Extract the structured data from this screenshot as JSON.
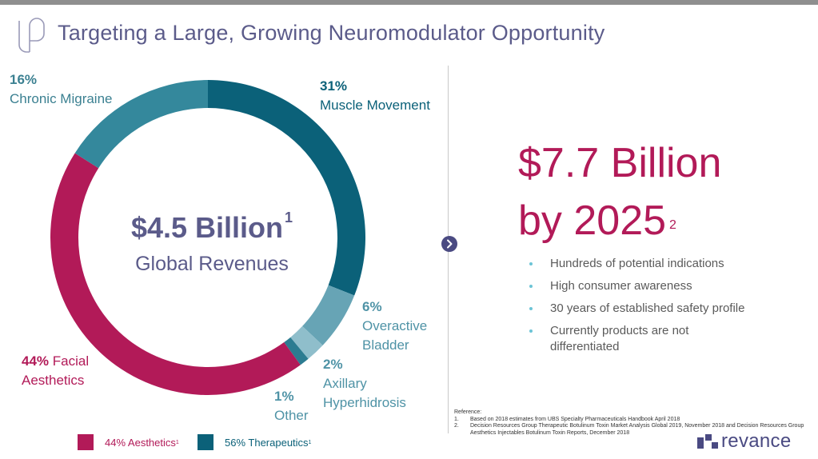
{
  "page": {
    "title": "Targeting a Large, Growing Neuromodulator Opportunity"
  },
  "colors": {
    "muscle_movement": "#0b6179",
    "overactive_bladder": "#67a4b5",
    "axillary_hyperhidrosis": "#8fbecb",
    "other": "#2c7c91",
    "facial_aesthetics": "#b21a58",
    "chronic_migraine": "#34889c",
    "title": "#5b5b8a",
    "accent": "#b21a58",
    "bullet_dot": "#6cc4d6"
  },
  "chart_data": {
    "type": "pie",
    "donut": true,
    "start": "top, clockwise",
    "center_value": "$4.5 Billion",
    "center_value_sup": "1",
    "center_label": "Global Revenues",
    "slices": [
      {
        "key": "muscle_movement",
        "value": 31,
        "pct_label": "31%",
        "label": "Muscle Movement"
      },
      {
        "key": "overactive_bladder",
        "value": 6,
        "pct_label": "6%",
        "label_line1": "Overactive",
        "label_line2": "Bladder"
      },
      {
        "key": "axillary_hyperhidrosis",
        "value": 2,
        "pct_label": "2%",
        "label_line1": "Axillary",
        "label_line2": "Hyperhidrosis"
      },
      {
        "key": "other",
        "value": 1,
        "pct_label": "1%",
        "label": "Other"
      },
      {
        "key": "facial_aesthetics",
        "value": 44,
        "pct_label": "44%",
        "label_inline": "Facial",
        "label_line2": "Aesthetics"
      },
      {
        "key": "chronic_migraine",
        "value": 16,
        "pct_label": "16%",
        "label": "Chronic Migraine"
      }
    ],
    "legend": [
      {
        "key": "aesthetics",
        "text": "44% Aesthetics",
        "sup": "1",
        "color": "#b21a58"
      },
      {
        "key": "therapeutics",
        "text": "56% Therapeutics",
        "sup": "1",
        "color": "#0b6179"
      }
    ]
  },
  "forecast": {
    "line1": "$7.7 Billion",
    "line2": "by 2025",
    "sup": "2"
  },
  "bullets": [
    "Hundreds of potential indications",
    "High consumer awareness",
    "30 years of established safety profile",
    "Currently products are not differentiated"
  ],
  "references": {
    "heading": "Reference:",
    "items": [
      {
        "num": "1.",
        "text": "Based on 2018 estimates from UBS Specialty Pharmaceuticals Handbook April 2018"
      },
      {
        "num": "2.",
        "text": "Decision Resources Group Therapeutic Botulinum Toxin Market Analysis Global 2019, November 2018 and Decision Resources Group Aesthetics Injectables Botulinum Toxin Reports, December 2018"
      }
    ]
  },
  "brand": {
    "name": "revance"
  }
}
